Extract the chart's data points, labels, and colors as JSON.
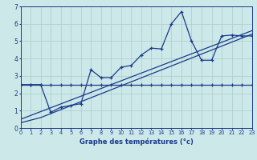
{
  "xlabel": "Graphe des températures (°c)",
  "bg_color": "#cce8e8",
  "line_color": "#1a3a8c",
  "grid_color": "#aacccc",
  "xmin": 0,
  "xmax": 23,
  "ymin": 0,
  "ymax": 7,
  "series1_x": [
    0,
    1,
    2,
    3,
    4,
    5,
    6,
    7,
    8,
    9,
    10,
    11,
    12,
    13,
    14,
    15,
    16,
    17,
    18,
    19,
    20,
    21,
    22,
    23
  ],
  "series1_y": [
    2.5,
    2.5,
    2.5,
    0.9,
    1.2,
    1.3,
    1.4,
    3.35,
    2.9,
    2.9,
    3.5,
    3.6,
    4.2,
    4.6,
    4.55,
    6.0,
    6.7,
    5.0,
    3.9,
    3.9,
    5.3,
    5.35,
    5.3,
    5.3
  ],
  "series2_x": [
    0,
    2,
    23
  ],
  "series2_y": [
    0.3,
    0.6,
    5.4
  ],
  "series3_x": [
    0,
    23
  ],
  "series3_y": [
    0.5,
    5.6
  ],
  "series4_x": [
    0,
    1,
    2,
    3,
    4,
    5,
    6,
    7,
    8,
    9,
    10,
    11,
    12,
    13,
    14,
    15,
    16,
    17,
    18,
    19,
    20,
    21,
    22,
    23
  ],
  "series4_y": [
    2.5,
    2.5,
    2.5,
    2.5,
    2.5,
    2.5,
    2.5,
    2.5,
    2.5,
    2.5,
    2.5,
    2.5,
    2.5,
    2.5,
    2.5,
    2.5,
    2.5,
    2.5,
    2.5,
    2.5,
    2.5,
    2.5,
    2.5,
    2.5
  ]
}
